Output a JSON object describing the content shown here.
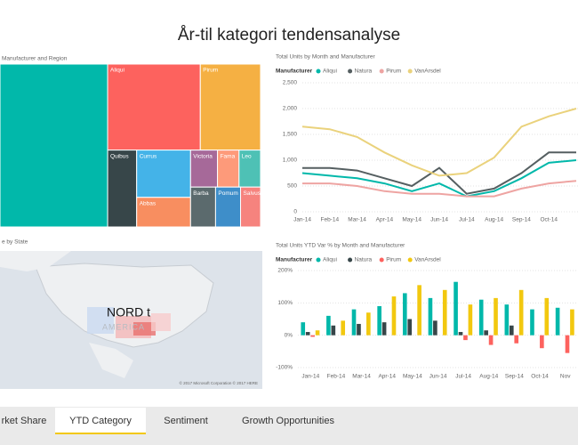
{
  "header": {
    "title": "År-til kategori tendensanalyse"
  },
  "chart_data": [
    {
      "type": "treemap",
      "title": "Manufacturer and Region",
      "categories": [
        null,
        "Aliqui",
        "Pirum",
        "Quibus",
        "Currus",
        "Abbas",
        "Victoria",
        "Fama",
        "Leo",
        "Barba",
        "Pomum",
        "Salvus"
      ],
      "values": [
        22000,
        10000,
        6500,
        2800,
        3200,
        2000,
        1250,
        1000,
        1000,
        1250,
        1250,
        1000
      ],
      "colors": [
        "#01b8aa",
        "#fd625e",
        "#f5b043",
        "#374649",
        "#44b3e8",
        "#f88e60",
        "#a66999",
        "#fd9a7a",
        "#4ec1b5",
        "#5b6a6d",
        "#3e8ec9",
        "#f6837e"
      ]
    },
    {
      "type": "line",
      "title": "Total Units by Month and Manufacturer",
      "legend_title": "Manufacturer",
      "categories": [
        "Jan-14",
        "Feb-14",
        "Mar-14",
        "Apr-14",
        "May-14",
        "Jun-14",
        "Jul-14",
        "Aug-14",
        "Sep-14",
        "Oct-14",
        null
      ],
      "series": [
        {
          "name": "Aliqui",
          "color": "#01b8aa",
          "values": [
            750,
            700,
            650,
            550,
            400,
            550,
            300,
            400,
            650,
            950,
            1000
          ]
        },
        {
          "name": "Natura",
          "color": "#555f61",
          "values": [
            850,
            850,
            800,
            650,
            500,
            850,
            350,
            450,
            750,
            1150,
            1150
          ]
        },
        {
          "name": "Pirum",
          "color": "#eea4a2",
          "values": [
            550,
            550,
            500,
            400,
            350,
            350,
            300,
            300,
            450,
            550,
            600
          ]
        },
        {
          "name": "VanArsdel",
          "color": "#ead27c",
          "values": [
            1650,
            1600,
            1450,
            1150,
            900,
            700,
            750,
            1050,
            1650,
            1850,
            2000
          ]
        }
      ],
      "ylim": [
        0,
        2500
      ],
      "yticks": [
        0,
        500,
        {
          "value": 1000,
          "label": "1,000"
        },
        {
          "value": 1500,
          "label": "1,500"
        },
        {
          "value": 2000,
          "label": "2,000"
        },
        {
          "value": 2500,
          "label": "2,500"
        }
      ],
      "grid": true
    },
    {
      "type": "bar",
      "title": "Total Units YTD Var % by Month and Manufacturer",
      "legend_title": "Manufacturer",
      "categories": [
        "Jan-14",
        "Feb-14",
        "Mar-14",
        "Apr-14",
        "May-14",
        "Jun-14",
        "Jul-14",
        "Aug-14",
        "Sep-14",
        "Oct-14",
        "Nov"
      ],
      "series": [
        {
          "name": "Aliqui",
          "color": "#01b8aa",
          "values": [
            40,
            60,
            80,
            90,
            130,
            115,
            165,
            110,
            95,
            80,
            85
          ]
        },
        {
          "name": "Natura",
          "color": "#374649",
          "values": [
            10,
            30,
            35,
            40,
            50,
            45,
            10,
            15,
            30,
            0,
            0
          ]
        },
        {
          "name": "Pirum",
          "color": "#fd625e",
          "values": [
            -5,
            0,
            0,
            0,
            0,
            0,
            -15,
            -30,
            -25,
            -40,
            -55
          ]
        },
        {
          "name": "VanArsdel",
          "color": "#f2c80f",
          "values": [
            15,
            45,
            70,
            120,
            155,
            140,
            95,
            115,
            140,
            115,
            80
          ]
        }
      ],
      "ylim": [
        -100,
        200
      ],
      "yticks": [
        {
          "value": -100,
          "label": "-100%"
        },
        {
          "value": 0,
          "label": "0%"
        },
        {
          "value": 100,
          "label": "100%"
        },
        {
          "value": 200,
          "label": "200%"
        }
      ],
      "grid": true
    }
  ],
  "map": {
    "title": "e by State",
    "label": "NORD t",
    "region": "AMERICA",
    "attribution": "© 2017 Microsoft Corporation  © 2017 HERE"
  },
  "tabs": [
    "rket Share",
    "YTD Category",
    "Sentiment",
    "Growth Opportunities"
  ],
  "active_tab": 1
}
